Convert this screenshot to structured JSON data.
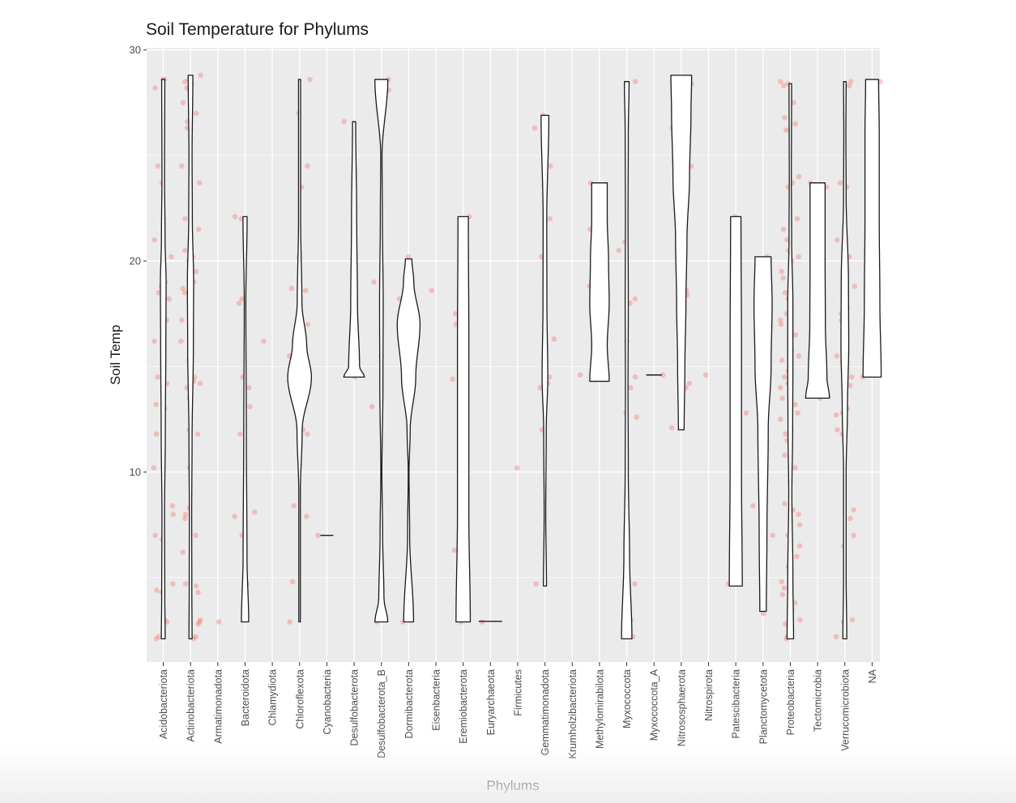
{
  "chart_data": {
    "type": "violin",
    "title": "Soil Temperature for Phylums",
    "xlabel": "Phylums",
    "ylabel": "Soil Temp",
    "ylim": [
      1,
      30.1
    ],
    "yticks": [
      10,
      20,
      30
    ],
    "grid": true,
    "legend": "none",
    "colors": {
      "panel": "#ebebeb",
      "grid": "#ffffff",
      "point": "#f8766d",
      "violin_fill": "#ffffff",
      "violin_stroke": "#1a1a1a",
      "text": "#4d4d4d"
    },
    "categories": [
      "Acidobacteriota",
      "Actinobacteriota",
      "Armatimonadota",
      "Bacteroidota",
      "Chlamydiota",
      "Chloroflexota",
      "Cyanobacteria",
      "Desulfobacterota",
      "Desulfobacterota_B",
      "Dormibacterota",
      "Eisenbacteria",
      "Eremiobacterota",
      "Euryarchaeota",
      "Firmicutes",
      "Gemmatimonadota",
      "Krumholzibacteriota",
      "Methylomirabilota",
      "Myxococcota",
      "Myxococcota_A",
      "Nitrososphaerota",
      "Nitrospirota",
      "Patescibacteria",
      "Planctomycetota",
      "Proteobacteria",
      "Tectomicrobia",
      "Verrucomicrobiota",
      "NA"
    ],
    "violins": [
      {
        "category": "Acidobacteriota",
        "profile": [
          [
            2.1,
            0.15
          ],
          [
            4,
            0.12
          ],
          [
            8,
            0.1
          ],
          [
            12,
            0.16
          ],
          [
            16,
            0.2
          ],
          [
            19,
            0.22
          ],
          [
            21,
            0.14
          ],
          [
            24,
            0.1
          ],
          [
            28.6,
            0.12
          ]
        ]
      },
      {
        "category": "Actinobacteriota",
        "profile": [
          [
            2.1,
            0.12
          ],
          [
            4.5,
            0.1
          ],
          [
            8,
            0.09
          ],
          [
            11.5,
            0.12
          ],
          [
            16,
            0.22
          ],
          [
            19,
            0.24
          ],
          [
            22,
            0.14
          ],
          [
            25,
            0.12
          ],
          [
            28.8,
            0.18
          ]
        ]
      },
      {
        "category": "Armatimonadota",
        "profile": []
      },
      {
        "category": "Bacteroidota",
        "profile": [
          [
            2.9,
            0.28
          ],
          [
            6,
            0.15
          ],
          [
            12,
            0.1
          ],
          [
            18,
            0.06
          ],
          [
            22.1,
            0.16
          ]
        ]
      },
      {
        "category": "Chlamydiota",
        "profile": []
      },
      {
        "category": "Chloroflexota",
        "profile": [
          [
            2.9,
            0.06
          ],
          [
            9,
            0.06
          ],
          [
            12,
            0.2
          ],
          [
            14.5,
            0.92
          ],
          [
            16,
            0.55
          ],
          [
            18,
            0.18
          ],
          [
            22,
            0.08
          ],
          [
            28.6,
            0.08
          ]
        ]
      },
      {
        "category": "Cyanobacteria",
        "profile": [
          [
            6.9,
            0.5
          ],
          [
            7.1,
            0.5
          ]
        ]
      },
      {
        "category": "Desulfobacterota",
        "profile": [
          [
            14.5,
            0.8
          ],
          [
            15,
            0.42
          ],
          [
            18,
            0.26
          ],
          [
            22,
            0.2
          ],
          [
            26.6,
            0.12
          ]
        ]
      },
      {
        "category": "Desulfobacterota_B",
        "profile": [
          [
            2.9,
            0.5
          ],
          [
            4,
            0.2
          ],
          [
            7,
            0.1
          ],
          [
            10,
            0.04
          ],
          [
            14,
            0.12
          ],
          [
            18,
            0.14
          ],
          [
            22,
            0.08
          ],
          [
            25,
            0.05
          ],
          [
            28.6,
            0.5
          ]
        ]
      },
      {
        "category": "Dormibacterota",
        "profile": [
          [
            2.9,
            0.38
          ],
          [
            7,
            0.08
          ],
          [
            10,
            0.03
          ],
          [
            12,
            0.12
          ],
          [
            14.5,
            0.55
          ],
          [
            17,
            0.88
          ],
          [
            19,
            0.4
          ],
          [
            20.1,
            0.25
          ]
        ]
      },
      {
        "category": "Eisenbacteria",
        "profile": []
      },
      {
        "category": "Eremiobacterota",
        "profile": [
          [
            2.9,
            0.55
          ],
          [
            8,
            0.44
          ],
          [
            16,
            0.44
          ],
          [
            22.1,
            0.4
          ]
        ]
      },
      {
        "category": "Euryarchaeota",
        "profile": [
          [
            2.85,
            0.9
          ],
          [
            3.0,
            0.9
          ]
        ]
      },
      {
        "category": "Firmicutes",
        "profile": []
      },
      {
        "category": "Gemmatimonadota",
        "profile": [
          [
            4.6,
            0.12
          ],
          [
            8,
            0.06
          ],
          [
            12,
            0.1
          ],
          [
            14.5,
            0.22
          ],
          [
            18,
            0.15
          ],
          [
            22,
            0.14
          ],
          [
            26.9,
            0.3
          ]
        ]
      },
      {
        "category": "Krumholzibacteriota",
        "profile": []
      },
      {
        "category": "Methylomirabilota",
        "profile": [
          [
            14.3,
            0.75
          ],
          [
            16,
            0.6
          ],
          [
            18,
            0.75
          ],
          [
            20,
            0.7
          ],
          [
            22,
            0.6
          ],
          [
            23.7,
            0.6
          ]
        ]
      },
      {
        "category": "Myxococcota",
        "profile": [
          [
            2.1,
            0.4
          ],
          [
            6,
            0.22
          ],
          [
            10,
            0.12
          ],
          [
            14,
            0.1
          ],
          [
            18,
            0.12
          ],
          [
            22,
            0.1
          ],
          [
            26,
            0.12
          ],
          [
            28.5,
            0.18
          ]
        ]
      },
      {
        "category": "Myxococcota_A",
        "profile": [
          [
            14.55,
            0.6
          ],
          [
            14.65,
            0.6
          ]
        ]
      },
      {
        "category": "Nitrososphaerota",
        "profile": [
          [
            12,
            0.22
          ],
          [
            15,
            0.28
          ],
          [
            18,
            0.36
          ],
          [
            21,
            0.44
          ],
          [
            24,
            0.64
          ],
          [
            27,
            0.75
          ],
          [
            28.8,
            0.8
          ]
        ]
      },
      {
        "category": "Nitrospirota",
        "profile": []
      },
      {
        "category": "Patescibacteria",
        "profile": [
          [
            4.6,
            0.5
          ],
          [
            10,
            0.44
          ],
          [
            16,
            0.44
          ],
          [
            22.1,
            0.4
          ]
        ]
      },
      {
        "category": "Planctomycetota",
        "profile": [
          [
            3.4,
            0.25
          ],
          [
            7,
            0.3
          ],
          [
            12,
            0.4
          ],
          [
            15,
            0.62
          ],
          [
            18,
            0.7
          ],
          [
            20.2,
            0.62
          ]
        ]
      },
      {
        "category": "Proteobacteria",
        "profile": [
          [
            2.1,
            0.25
          ],
          [
            5,
            0.2
          ],
          [
            9,
            0.12
          ],
          [
            12,
            0.18
          ],
          [
            15,
            0.2
          ],
          [
            18,
            0.2
          ],
          [
            21,
            0.1
          ],
          [
            24,
            0.08
          ],
          [
            28.4,
            0.1
          ]
        ]
      },
      {
        "category": "Tectomicrobia",
        "profile": [
          [
            13.5,
            0.92
          ],
          [
            14.5,
            0.72
          ],
          [
            17,
            0.6
          ],
          [
            20,
            0.58
          ],
          [
            23.7,
            0.58
          ]
        ]
      },
      {
        "category": "Verrucomicrobiota",
        "profile": [
          [
            2.1,
            0.15
          ],
          [
            5,
            0.1
          ],
          [
            10,
            0.1
          ],
          [
            13,
            0.2
          ],
          [
            16,
            0.3
          ],
          [
            19,
            0.28
          ],
          [
            23,
            0.1
          ],
          [
            26,
            0.08
          ],
          [
            28.5,
            0.1
          ]
        ]
      },
      {
        "category": "NA",
        "profile": [
          [
            14.5,
            0.7
          ],
          [
            18,
            0.6
          ],
          [
            22,
            0.55
          ],
          [
            26,
            0.55
          ],
          [
            28.6,
            0.5
          ]
        ]
      }
    ],
    "points": [
      {
        "category": "Acidobacteriota",
        "y": [
          28.6,
          28.6,
          28.2,
          24.5,
          23.7,
          22,
          21,
          20.2,
          19,
          18.8,
          18.5,
          18.2,
          17.2,
          16.2,
          15.2,
          14.5,
          14.2,
          13.2,
          13,
          12.5,
          11.8,
          10.2,
          8.4,
          8,
          7,
          6.8,
          4.7,
          4.4,
          4.3,
          3,
          2.9,
          2.2,
          2.1
        ]
      },
      {
        "category": "Actinobacteriota",
        "y": [
          28.8,
          28.6,
          28.5,
          28.4,
          28.2,
          27.5,
          27,
          26.6,
          26.3,
          24.5,
          23.7,
          22,
          21.5,
          21,
          20.5,
          20.2,
          20,
          19.5,
          19,
          18.7,
          18.5,
          18.2,
          17.2,
          16.2,
          15.3,
          14.5,
          14.3,
          14.2,
          14,
          13.5,
          13,
          12,
          11.8,
          10.2,
          8.3,
          8,
          7.8,
          7,
          6.2,
          4.7,
          4.6,
          4.3,
          3,
          2.9,
          2.8,
          2.2,
          2.1
        ]
      },
      {
        "category": "Armatimonadota",
        "y": [
          2.9
        ]
      },
      {
        "category": "Bacteroidota",
        "y": [
          22.1,
          22,
          18.2,
          18,
          14.5,
          14,
          13.1,
          11.8,
          8.1,
          7.9,
          7,
          4.7,
          4.4
        ]
      },
      {
        "category": "Chlamydiota",
        "y": [
          16.2
        ]
      },
      {
        "category": "Chloroflexota",
        "y": [
          28.6,
          27,
          24.5,
          23.5,
          20.2,
          18.7,
          18.6,
          17,
          16.2,
          15.5,
          14.5,
          14,
          13.2,
          12,
          11.8,
          8.4,
          7.9,
          4.8,
          2.9
        ]
      },
      {
        "category": "Cyanobacteria",
        "y": [
          7
        ]
      },
      {
        "category": "Desulfobacterota",
        "y": [
          26.6,
          14.5
        ]
      },
      {
        "category": "Desulfobacterota_B",
        "y": [
          28.6,
          28.1,
          19,
          15.5,
          13.1,
          2.9
        ]
      },
      {
        "category": "Dormibacterota",
        "y": [
          20.2,
          18.2,
          14.2,
          2.9
        ]
      },
      {
        "category": "Eisenbacteria",
        "y": [
          18.6
        ]
      },
      {
        "category": "Eremiobacterota",
        "y": [
          22.1,
          17.5,
          17,
          14.4,
          8.4,
          6.3,
          2.9
        ]
      },
      {
        "category": "Euryarchaeota",
        "y": [
          2.9
        ]
      },
      {
        "category": "Firmicutes",
        "y": [
          10.2
        ]
      },
      {
        "category": "Gemmatimonadota",
        "y": [
          26.9,
          26.3,
          24.5,
          23.6,
          22,
          20.2,
          16.3,
          14.5,
          14.2,
          14,
          12,
          4.7
        ]
      },
      {
        "category": "Krumholzibacteriota",
        "y": [
          14.6
        ]
      },
      {
        "category": "Methylomirabilota",
        "y": [
          23.7,
          21.5,
          20.4,
          20.2,
          18.8,
          18.5,
          17.5,
          17.1,
          14.4
        ]
      },
      {
        "category": "Myxococcota",
        "y": [
          28.5,
          28.4,
          20.9,
          20.5,
          18.2,
          18,
          16.2,
          14.5,
          14,
          12.8,
          12.6,
          4.7,
          4.6,
          3.5,
          3,
          2.2
        ]
      },
      {
        "category": "Myxococcota_A",
        "y": [
          14.6
        ]
      },
      {
        "category": "Nitrososphaerota",
        "y": [
          28.6,
          28.4,
          28.2,
          27,
          26.5,
          26.3,
          24.5,
          21.2,
          20.9,
          20.5,
          18.6,
          18.4,
          17.9,
          17.5,
          14.2,
          14,
          12.1
        ]
      },
      {
        "category": "Nitrospirota",
        "y": [
          14.6
        ]
      },
      {
        "category": "Patescibacteria",
        "y": [
          22.1,
          12.8,
          12.6,
          4.7
        ]
      },
      {
        "category": "Planctomycetota",
        "y": [
          20.2,
          18.5,
          18.3,
          16.2,
          12.7,
          8.4,
          7,
          3.3
        ]
      },
      {
        "category": "Proteobacteria",
        "y": [
          28.5,
          28.4,
          28.3,
          27.5,
          26.8,
          26.5,
          26.2,
          24,
          23.7,
          23.5,
          22,
          21.5,
          21,
          20.5,
          20.2,
          20,
          19.5,
          19.2,
          18.8,
          18.5,
          18.2,
          18,
          17.5,
          17.2,
          17,
          16.5,
          16.2,
          15.8,
          15.5,
          15.3,
          14.8,
          14.5,
          14.2,
          14,
          13.5,
          13.2,
          12.8,
          12.5,
          12,
          11.8,
          11.5,
          10.8,
          10.2,
          9.5,
          8.5,
          8.2,
          8,
          7.5,
          7,
          6.5,
          6,
          5.5,
          4.8,
          4.5,
          4.2,
          3.8,
          3.5,
          3,
          2.8,
          2.2,
          2.1
        ]
      },
      {
        "category": "Tectomicrobia",
        "y": [
          23.7,
          23.5,
          13.5
        ]
      },
      {
        "category": "Verrucomicrobiota",
        "y": [
          28.5,
          28.3,
          23.7,
          23.5,
          21,
          20.2,
          18.8,
          17.8,
          17.5,
          17.2,
          16.6,
          16.2,
          15.5,
          15.2,
          14.5,
          14.1,
          14,
          13.2,
          13,
          12.8,
          12.7,
          12,
          11.8,
          8.2,
          7.8,
          7,
          6.5,
          3,
          2.9,
          2.2
        ]
      },
      {
        "category": "NA",
        "y": [
          28.5,
          28.1,
          20.3,
          17.2,
          14.5
        ]
      }
    ]
  }
}
